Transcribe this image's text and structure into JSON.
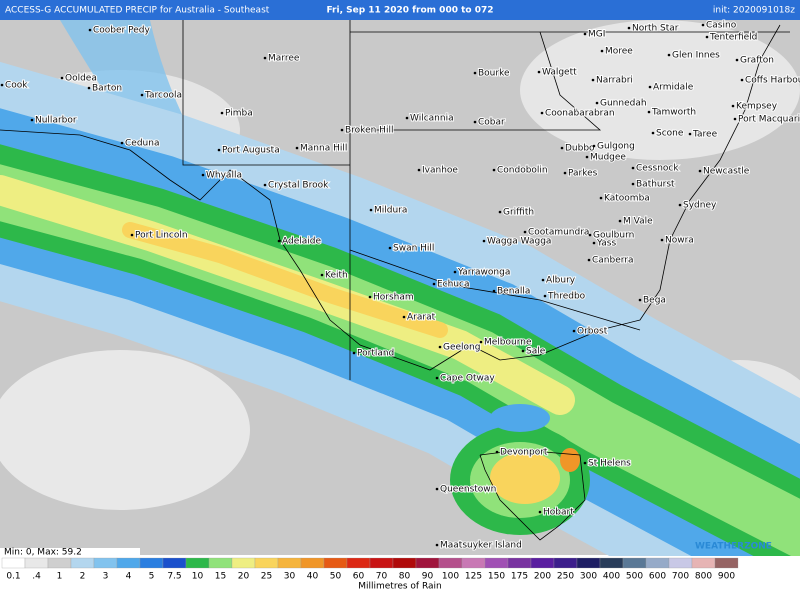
{
  "header": {
    "product": "ACCESS-G ACCUMULATED PRECIP for Australia - Southeast",
    "period": "Fri, Sep 11 2020 from 000 to 072",
    "init": "init: 2020091018z"
  },
  "places": [
    "Coober Pedy",
    "Marree",
    "Cook",
    "Ooldea",
    "Barton",
    "Tarcoola",
    "Nullarbor",
    "Ceduna",
    "Pimba",
    "Port Augusta",
    "Whyalla",
    "Crystal Brook",
    "Manna Hill",
    "Wilcannia",
    "Broken Hill",
    "Bourke",
    "Cobar",
    "Ivanhoe",
    "Port Lincoln",
    "Adelaide",
    "Mildura",
    "Swan Hill",
    "Keith",
    "Horsham",
    "Ararat",
    "Portland",
    "Geelong",
    "Melbourne",
    "Cape Otway",
    "Echuca",
    "Yarrawonga",
    "Benalla",
    "Albury",
    "Thredbo",
    "Sale",
    "Orbost",
    "Bega",
    "Condobolin",
    "Parkes",
    "Griffith",
    "Cootamundra",
    "Wagga Wagga",
    "Goulburn",
    "Yass",
    "Canberra",
    "Nowra",
    "M Vale",
    "Katoomba",
    "Sydney",
    "Bathurst",
    "Cessnock",
    "Newcastle",
    "Mudgee",
    "Dubbo",
    "Gulgong",
    "Scone",
    "Taree",
    "Coonabarabran",
    "Gunnedah",
    "Tamworth",
    "Walgett",
    "Narrabri",
    "Armidale",
    "Moree",
    "Glen Innes",
    "Grafton",
    "Coffs Harbour",
    "Kempsey",
    "Port Macquarie",
    "North Star",
    "MGI",
    "Casino",
    "Tenterfield",
    "Devonport",
    "St Helens",
    "Queenstown",
    "Hobart",
    "Maatsuyker Island"
  ],
  "stats": "Min: 0, Max: 59.2",
  "logo": "WEATHERZONE",
  "legend": {
    "title": "Millimetres of Rain",
    "items": [
      {
        "label": "0.1",
        "color": "#ffffff"
      },
      {
        "label": ".4",
        "color": "#e8e8e8"
      },
      {
        "label": "1",
        "color": "#cfcfcf"
      },
      {
        "label": "2",
        "color": "#b3d6ee"
      },
      {
        "label": "3",
        "color": "#82c3ee"
      },
      {
        "label": "4",
        "color": "#50a8ea"
      },
      {
        "label": "5",
        "color": "#2a7ee0"
      },
      {
        "label": "7.5",
        "color": "#1a50cc"
      },
      {
        "label": "10",
        "color": "#2db84a"
      },
      {
        "label": "15",
        "color": "#90e27a"
      },
      {
        "label": "20",
        "color": "#eeee82"
      },
      {
        "label": "25",
        "color": "#f9d45c"
      },
      {
        "label": "30",
        "color": "#f5b43c"
      },
      {
        "label": "40",
        "color": "#f09628"
      },
      {
        "label": "50",
        "color": "#e65a14"
      },
      {
        "label": "60",
        "color": "#dc2814"
      },
      {
        "label": "70",
        "color": "#c81414"
      },
      {
        "label": "80",
        "color": "#b00a0a"
      },
      {
        "label": "90",
        "color": "#a0143c"
      },
      {
        "label": "100",
        "color": "#b4508c"
      },
      {
        "label": "125",
        "color": "#c878b4"
      },
      {
        "label": "150",
        "color": "#a050b4"
      },
      {
        "label": "175",
        "color": "#7832a0"
      },
      {
        "label": "200",
        "color": "#5a1ea0"
      },
      {
        "label": "250",
        "color": "#3c1e8c"
      },
      {
        "label": "300",
        "color": "#1e1e64"
      },
      {
        "label": "400",
        "color": "#283c5a"
      },
      {
        "label": "500",
        "color": "#5a7896"
      },
      {
        "label": "600",
        "color": "#96aac8"
      },
      {
        "label": "700",
        "color": "#c8c8e6"
      },
      {
        "label": "800",
        "color": "#e6b4b4"
      },
      {
        "label": "900",
        "color": "#966464"
      }
    ]
  }
}
